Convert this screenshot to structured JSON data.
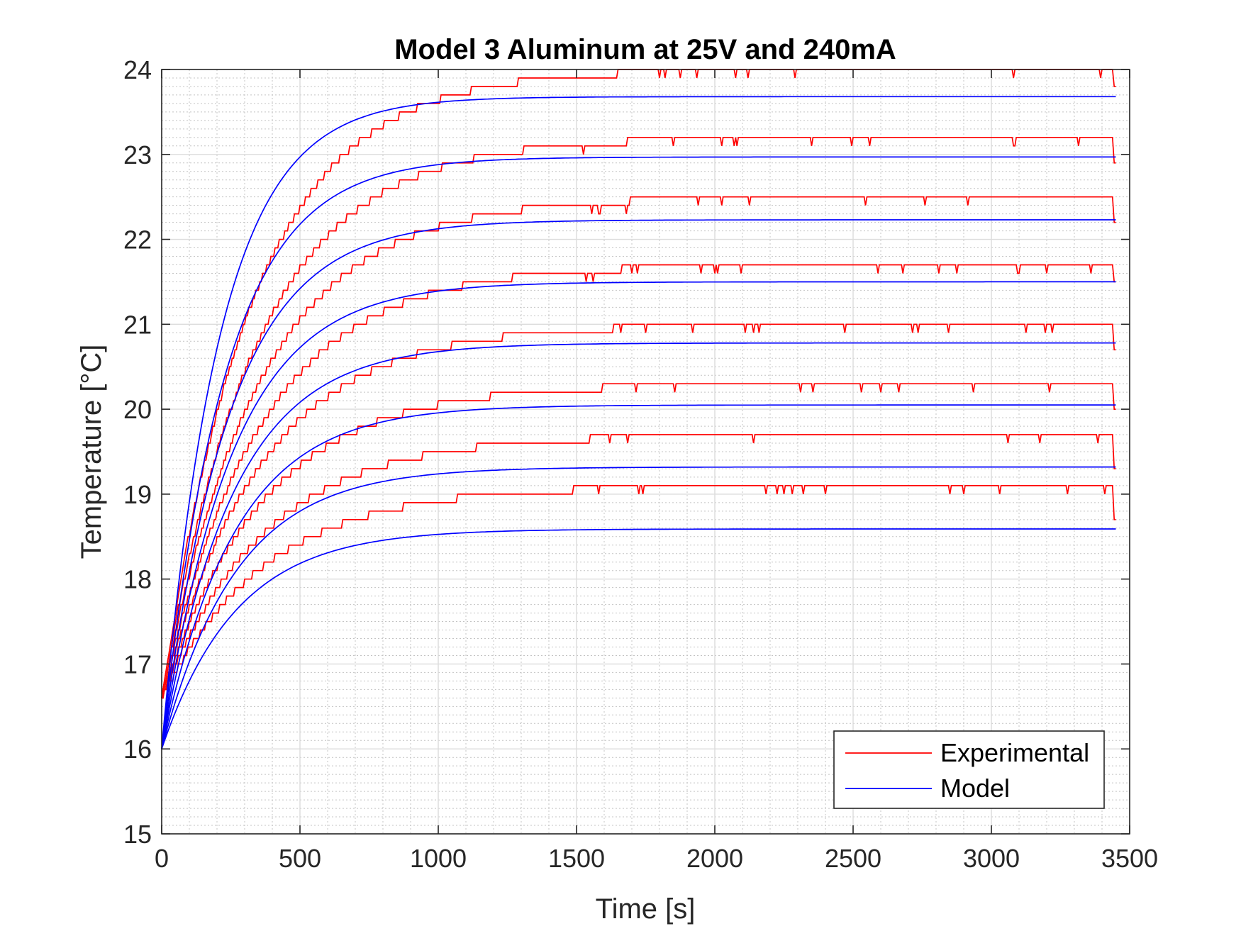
{
  "chart_data": {
    "type": "line",
    "title": "Model 3 Aluminum at 25V and 240mA",
    "xlabel": "Time [s]",
    "ylabel": "Temperature [°C]",
    "xlim": [
      0,
      3500
    ],
    "ylim": [
      15,
      24
    ],
    "xticks": [
      0,
      500,
      1000,
      1500,
      2000,
      2500,
      3000,
      3500
    ],
    "yticks": [
      15,
      16,
      17,
      18,
      19,
      20,
      21,
      22,
      23,
      24
    ],
    "xtick_labels": [
      "0",
      "500",
      "1000",
      "1500",
      "2000",
      "2500",
      "3000",
      "3500"
    ],
    "ytick_labels": [
      "15",
      "16",
      "17",
      "18",
      "19",
      "20",
      "21",
      "22",
      "23",
      "24"
    ],
    "grid": true,
    "minor_grid": true,
    "legend_position": "bottom-right",
    "colors": {
      "experimental": "#ff0000",
      "model": "#0000ff"
    },
    "legend": [
      {
        "name": "Experimental",
        "color": "#ff0000"
      },
      {
        "name": "Model",
        "color": "#0000ff"
      }
    ],
    "x_end": 3450,
    "model_series": [
      {
        "start": 16.0,
        "steady": 23.68,
        "tau": 210
      },
      {
        "start": 16.0,
        "steady": 22.97,
        "tau": 230
      },
      {
        "start": 16.0,
        "steady": 22.23,
        "tau": 245
      },
      {
        "start": 16.0,
        "steady": 21.5,
        "tau": 255
      },
      {
        "start": 16.0,
        "steady": 20.78,
        "tau": 260
      },
      {
        "start": 16.0,
        "steady": 20.05,
        "tau": 265
      },
      {
        "start": 16.0,
        "steady": 19.32,
        "tau": 270
      },
      {
        "start": 16.0,
        "steady": 18.59,
        "tau": 270
      }
    ],
    "experimental_series": [
      {
        "start": 16.6,
        "steady": 24.0,
        "tau": 330,
        "end": 23.8
      },
      {
        "start": 16.6,
        "steady": 23.2,
        "tau": 345,
        "end": 22.9
      },
      {
        "start": 16.6,
        "steady": 22.5,
        "tau": 355,
        "end": 22.2
      },
      {
        "start": 16.6,
        "steady": 21.7,
        "tau": 360,
        "end": 21.5
      },
      {
        "start": 16.6,
        "steady": 21.0,
        "tau": 365,
        "end": 20.7
      },
      {
        "start": 16.6,
        "steady": 20.3,
        "tau": 370,
        "end": 20.0
      },
      {
        "start": 16.6,
        "steady": 19.7,
        "tau": 375,
        "end": 19.3
      },
      {
        "start": 16.6,
        "steady": 19.1,
        "tau": 380,
        "end": 18.7
      }
    ]
  }
}
